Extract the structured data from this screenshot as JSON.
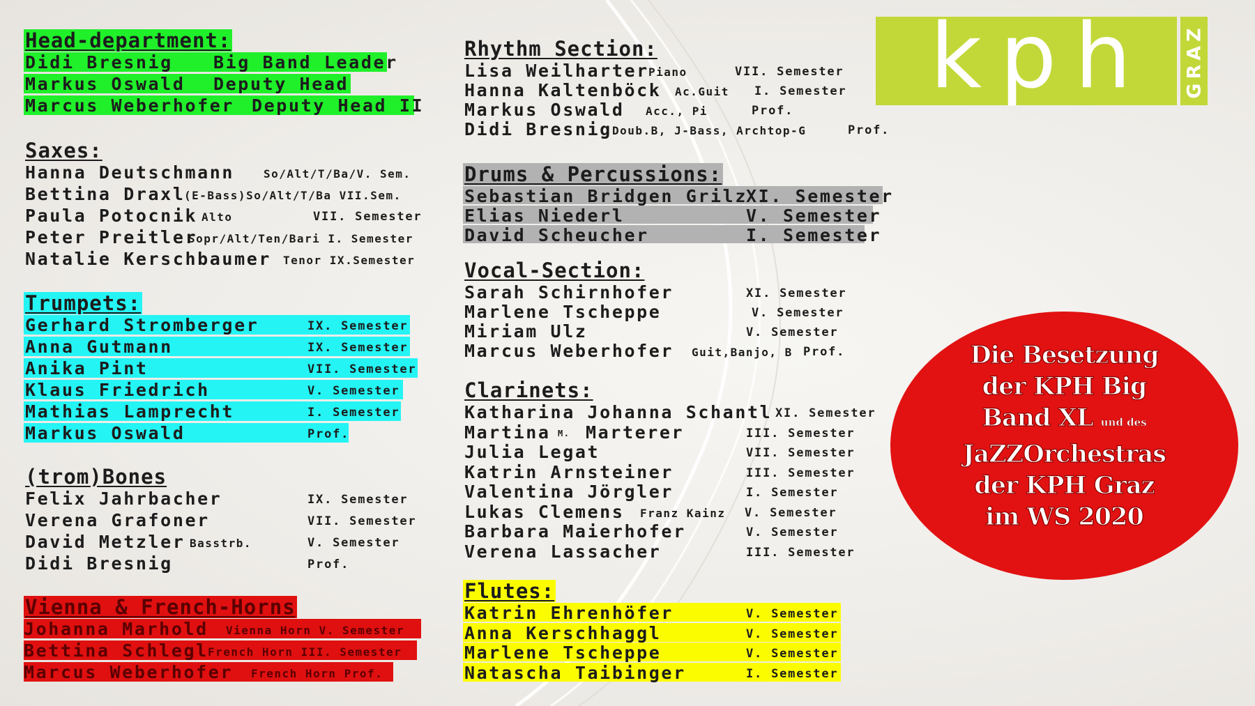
{
  "colors": {
    "green_highlight": "#1ff02a",
    "cyan_highlight": "#24f4f4",
    "grey_highlight": "#b2b2b2",
    "red_highlight": "#e01010",
    "yellow_highlight": "#fcfc00",
    "logo_green": "#c2d838",
    "circle_red": "#e21212"
  },
  "logo": {
    "text": "kph",
    "subtext": "GRAZ"
  },
  "circle": {
    "lines": [
      "Die Besetzung",
      "der KPH Big",
      "Band XL",
      "und des",
      "JaZZOrchestras",
      "der KPH Graz",
      "im WS 2020"
    ]
  },
  "sections": {
    "head": {
      "title": "Head-department:",
      "members": [
        {
          "name": "Didi Bresnig",
          "extra": "",
          "semester": "Big Band Leader"
        },
        {
          "name": "Markus Oswald",
          "extra": "",
          "semester": "Deputy Head"
        },
        {
          "name": "Marcus Weberhofer",
          "extra": "",
          "semester": "Deputy Head II"
        }
      ]
    },
    "saxes": {
      "title": "Saxes:",
      "members": [
        {
          "name": "Hanna Deutschmann",
          "extra": "So/Alt/T/Ba/V. Sem.",
          "semester": ""
        },
        {
          "name": "Bettina Draxl",
          "extra": "(E-Bass)So/Alt/T/Ba VII.Sem.",
          "semester": ""
        },
        {
          "name": "Paula Potocnik",
          "extra": "Alto",
          "semester": "VII. Semester"
        },
        {
          "name": "Peter Preitler",
          "extra": "Sopr/Alt/Ten/Bari I. Semester",
          "semester": ""
        },
        {
          "name": "Natalie Kerschbaumer",
          "extra": "Tenor IX.Semester",
          "semester": ""
        }
      ]
    },
    "trumpets": {
      "title": "Trumpets:",
      "members": [
        {
          "name": "Gerhard Stromberger",
          "extra": "",
          "semester": "IX. Semester"
        },
        {
          "name": "Anna Gutmann",
          "extra": "",
          "semester": "IX. Semester"
        },
        {
          "name": "Anika Pint",
          "extra": "",
          "semester": "VII. Semester"
        },
        {
          "name": "Klaus Friedrich",
          "extra": "",
          "semester": "V. Semester"
        },
        {
          "name": "Mathias Lamprecht",
          "extra": "",
          "semester": "I. Semester"
        },
        {
          "name": "Markus Oswald",
          "extra": "",
          "semester": "Prof."
        }
      ]
    },
    "bones": {
      "title": "(trom)Bones",
      "members": [
        {
          "name": "Felix Jahrbacher",
          "extra": "",
          "semester": "IX. Semester"
        },
        {
          "name": "Verena Grafoner",
          "extra": "",
          "semester": "VII. Semester"
        },
        {
          "name": "David Metzler",
          "extra": "Basstrb.",
          "semester": "V. Semester"
        },
        {
          "name": "Didi Bresnig",
          "extra": "",
          "semester": "Prof."
        }
      ]
    },
    "horns": {
      "title": "Vienna & French-Horns",
      "members": [
        {
          "name": "Johanna Marhold",
          "extra": "Vienna Horn V. Semester",
          "semester": ""
        },
        {
          "name": "Bettina Schlegl",
          "extra": "French Horn III. Semester",
          "semester": ""
        },
        {
          "name": "Marcus Weberhofer",
          "extra": "French Horn Prof.",
          "semester": ""
        }
      ]
    },
    "rhythm": {
      "title": "Rhythm Section:",
      "members": [
        {
          "name": "Lisa Weilharter",
          "extra": "Piano",
          "semester": "VII. Semester"
        },
        {
          "name": "Hanna Kaltenböck",
          "extra": "Ac.Guit",
          "semester": "I. Semester"
        },
        {
          "name": "Markus Oswald",
          "extra": "Acc., Pi",
          "semester": "Prof."
        },
        {
          "name": "Didi Bresnig",
          "extra": "Doub.B, J-Bass, Archtop-G",
          "semester": "Prof."
        }
      ]
    },
    "drums": {
      "title": "Drums & Percussions:",
      "members": [
        {
          "name": "Sebastian Bridgen Grilz",
          "extra": "",
          "semester": "XI. Semester"
        },
        {
          "name": "Elias Niederl",
          "extra": "",
          "semester": "V. Semester"
        },
        {
          "name": "David Scheucher",
          "extra": "",
          "semester": "I. Semester"
        }
      ]
    },
    "vocal": {
      "title": "Vocal-Section:",
      "members": [
        {
          "name": "Sarah Schirnhofer",
          "extra": "",
          "semester": "XI. Semester"
        },
        {
          "name": "Marlene Tscheppe",
          "extra": "",
          "semester": "V. Semester"
        },
        {
          "name": "Miriam Ulz",
          "extra": "",
          "semester": "V. Semester"
        },
        {
          "name": "Marcus Weberhofer",
          "extra": "Guit,Banjo, B",
          "semester": "Prof."
        }
      ]
    },
    "clarinets": {
      "title": "Clarinets:",
      "members": [
        {
          "name": "Katharina Johanna Schantl",
          "extra": "",
          "semester": "XI. Semester"
        },
        {
          "name": "Martina",
          "extra": "M.",
          "name2": "Marterer",
          "semester": "III. Semester"
        },
        {
          "name": "Julia Legat",
          "extra": "",
          "semester": "VII. Semester"
        },
        {
          "name": "Katrin Arnsteiner",
          "extra": "",
          "semester": "III. Semester"
        },
        {
          "name": "Valentina Jörgler",
          "extra": "",
          "semester": "I. Semester"
        },
        {
          "name": "Lukas Clemens",
          "extra": "Franz Kainz",
          "semester": "V. Semester"
        },
        {
          "name": "Barbara Maierhofer",
          "extra": "",
          "semester": "V. Semester"
        },
        {
          "name": "Verena Lassacher",
          "extra": "",
          "semester": "III. Semester"
        }
      ]
    },
    "flutes": {
      "title": "Flutes:",
      "members": [
        {
          "name": "Katrin Ehrenhöfer",
          "extra": "",
          "semester": "V. Semester"
        },
        {
          "name": "Anna Kerschhaggl",
          "extra": "",
          "semester": "V. Semester"
        },
        {
          "name": "Marlene Tscheppe",
          "extra": "",
          "semester": "V. Semester"
        },
        {
          "name": "Natascha Taibinger",
          "extra": "",
          "semester": "I. Semester"
        }
      ]
    }
  }
}
